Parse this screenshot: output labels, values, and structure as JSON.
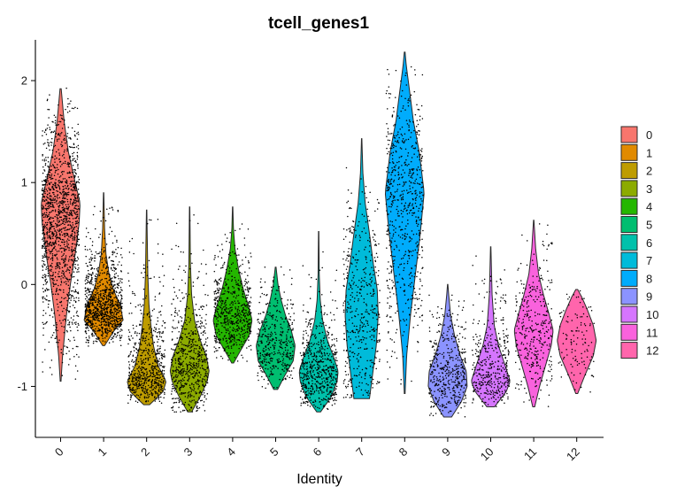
{
  "chart_data": {
    "type": "violin",
    "title": "tcell_genes1",
    "xlabel": "Identity",
    "ylabel": "",
    "ylim": [
      -1.5,
      2.4
    ],
    "yticks": [
      -1,
      0,
      1,
      2
    ],
    "legend_position": "right",
    "categories": [
      "0",
      "1",
      "2",
      "3",
      "4",
      "5",
      "6",
      "7",
      "8",
      "9",
      "10",
      "11",
      "12"
    ],
    "colors": [
      "#F8766D",
      "#E18A00",
      "#BE9C00",
      "#8CAB00",
      "#24B700",
      "#00BE70",
      "#00C1AB",
      "#00BBDA",
      "#00ACFC",
      "#8B93FF",
      "#D575FE",
      "#F962DD",
      "#FF65AC"
    ],
    "series": [
      {
        "name": "0",
        "min": -0.95,
        "max": 1.92,
        "median": 0.7,
        "n_points": 1400,
        "shape": [
          [
            -0.95,
            0.02
          ],
          [
            -0.7,
            0.1
          ],
          [
            -0.3,
            0.3
          ],
          [
            0.0,
            0.5
          ],
          [
            0.3,
            0.75
          ],
          [
            0.6,
            0.95
          ],
          [
            0.8,
            1.0
          ],
          [
            1.0,
            0.75
          ],
          [
            1.3,
            0.4
          ],
          [
            1.6,
            0.18
          ],
          [
            1.92,
            0.03
          ]
        ]
      },
      {
        "name": "1",
        "min": -0.6,
        "max": 0.9,
        "median": -0.3,
        "n_points": 1000,
        "shape": [
          [
            -0.6,
            0.05
          ],
          [
            -0.45,
            0.55
          ],
          [
            -0.35,
            1.0
          ],
          [
            -0.2,
            0.85
          ],
          [
            -0.05,
            0.5
          ],
          [
            0.1,
            0.28
          ],
          [
            0.3,
            0.12
          ],
          [
            0.55,
            0.05
          ],
          [
            0.9,
            0.01
          ]
        ]
      },
      {
        "name": "2",
        "min": -1.18,
        "max": 0.73,
        "median": -0.95,
        "n_points": 650,
        "shape": [
          [
            -1.18,
            0.15
          ],
          [
            -1.05,
            0.85
          ],
          [
            -0.95,
            1.0
          ],
          [
            -0.8,
            0.6
          ],
          [
            -0.6,
            0.35
          ],
          [
            -0.4,
            0.22
          ],
          [
            -0.2,
            0.12
          ],
          [
            0.1,
            0.06
          ],
          [
            0.73,
            0.01
          ]
        ]
      },
      {
        "name": "3",
        "min": -1.25,
        "max": 0.76,
        "median": -0.9,
        "n_points": 650,
        "shape": [
          [
            -1.25,
            0.1
          ],
          [
            -1.1,
            0.55
          ],
          [
            -0.95,
            0.9
          ],
          [
            -0.85,
            1.0
          ],
          [
            -0.7,
            0.85
          ],
          [
            -0.55,
            0.55
          ],
          [
            -0.35,
            0.25
          ],
          [
            -0.1,
            0.1
          ],
          [
            0.2,
            0.04
          ],
          [
            0.76,
            0.01
          ]
        ]
      },
      {
        "name": "4",
        "min": -0.77,
        "max": 0.76,
        "median": -0.35,
        "n_points": 600,
        "shape": [
          [
            -0.77,
            0.05
          ],
          [
            -0.65,
            0.4
          ],
          [
            -0.5,
            0.85
          ],
          [
            -0.35,
            1.0
          ],
          [
            -0.2,
            0.8
          ],
          [
            -0.05,
            0.55
          ],
          [
            0.15,
            0.3
          ],
          [
            0.35,
            0.12
          ],
          [
            0.55,
            0.04
          ],
          [
            0.76,
            0.01
          ]
        ]
      },
      {
        "name": "5",
        "min": -1.03,
        "max": 0.17,
        "median": -0.6,
        "n_points": 400,
        "shape": [
          [
            -1.03,
            0.1
          ],
          [
            -0.9,
            0.45
          ],
          [
            -0.75,
            0.9
          ],
          [
            -0.6,
            1.0
          ],
          [
            -0.45,
            0.8
          ],
          [
            -0.3,
            0.5
          ],
          [
            -0.15,
            0.28
          ],
          [
            0.0,
            0.12
          ],
          [
            0.17,
            0.02
          ]
        ]
      },
      {
        "name": "6",
        "min": -1.25,
        "max": 0.52,
        "median": -0.9,
        "n_points": 600,
        "shape": [
          [
            -1.25,
            0.1
          ],
          [
            -1.1,
            0.65
          ],
          [
            -0.95,
            0.95
          ],
          [
            -0.85,
            1.0
          ],
          [
            -0.7,
            0.75
          ],
          [
            -0.55,
            0.45
          ],
          [
            -0.35,
            0.2
          ],
          [
            -0.15,
            0.08
          ],
          [
            0.1,
            0.03
          ],
          [
            0.52,
            0.01
          ]
        ]
      },
      {
        "name": "7",
        "min": -1.12,
        "max": 1.43,
        "median": -0.3,
        "n_points": 450,
        "shape": [
          [
            -1.12,
            0.4
          ],
          [
            -0.9,
            0.55
          ],
          [
            -0.6,
            0.75
          ],
          [
            -0.3,
            0.85
          ],
          [
            -0.05,
            0.8
          ],
          [
            0.2,
            0.6
          ],
          [
            0.5,
            0.4
          ],
          [
            0.8,
            0.18
          ],
          [
            1.1,
            0.06
          ],
          [
            1.43,
            0.01
          ]
        ]
      },
      {
        "name": "8",
        "min": -1.07,
        "max": 2.28,
        "median": 0.8,
        "n_points": 650,
        "shape": [
          [
            -1.07,
            0.02
          ],
          [
            -0.7,
            0.1
          ],
          [
            -0.3,
            0.3
          ],
          [
            0.1,
            0.55
          ],
          [
            0.5,
            0.8
          ],
          [
            0.9,
            1.0
          ],
          [
            1.3,
            0.75
          ],
          [
            1.6,
            0.45
          ],
          [
            1.9,
            0.25
          ],
          [
            2.15,
            0.08
          ],
          [
            2.28,
            0.02
          ]
        ]
      },
      {
        "name": "9",
        "min": -1.3,
        "max": 0.0,
        "median": -0.95,
        "n_points": 450,
        "shape": [
          [
            -1.3,
            0.2
          ],
          [
            -1.15,
            0.7
          ],
          [
            -1.0,
            1.0
          ],
          [
            -0.85,
            0.95
          ],
          [
            -0.7,
            0.65
          ],
          [
            -0.5,
            0.35
          ],
          [
            -0.3,
            0.15
          ],
          [
            -0.1,
            0.05
          ],
          [
            0.0,
            0.01
          ]
        ]
      },
      {
        "name": "10",
        "min": -1.2,
        "max": 0.37,
        "median": -0.95,
        "n_points": 400,
        "shape": [
          [
            -1.2,
            0.2
          ],
          [
            -1.05,
            0.8
          ],
          [
            -0.95,
            1.0
          ],
          [
            -0.8,
            0.75
          ],
          [
            -0.6,
            0.4
          ],
          [
            -0.4,
            0.18
          ],
          [
            -0.1,
            0.07
          ],
          [
            0.37,
            0.01
          ]
        ]
      },
      {
        "name": "11",
        "min": -1.2,
        "max": 0.63,
        "median": -0.55,
        "n_points": 350,
        "shape": [
          [
            -1.2,
            0.05
          ],
          [
            -1.0,
            0.3
          ],
          [
            -0.8,
            0.6
          ],
          [
            -0.6,
            0.9
          ],
          [
            -0.45,
            1.0
          ],
          [
            -0.3,
            0.8
          ],
          [
            -0.1,
            0.5
          ],
          [
            0.1,
            0.25
          ],
          [
            0.35,
            0.1
          ],
          [
            0.63,
            0.01
          ]
        ]
      },
      {
        "name": "12",
        "min": -1.07,
        "max": -0.05,
        "median": -0.55,
        "n_points": 120,
        "shape": [
          [
            -1.07,
            0.05
          ],
          [
            -0.9,
            0.4
          ],
          [
            -0.7,
            0.85
          ],
          [
            -0.55,
            1.0
          ],
          [
            -0.4,
            0.85
          ],
          [
            -0.25,
            0.55
          ],
          [
            -0.12,
            0.25
          ],
          [
            -0.05,
            0.05
          ]
        ]
      }
    ]
  }
}
